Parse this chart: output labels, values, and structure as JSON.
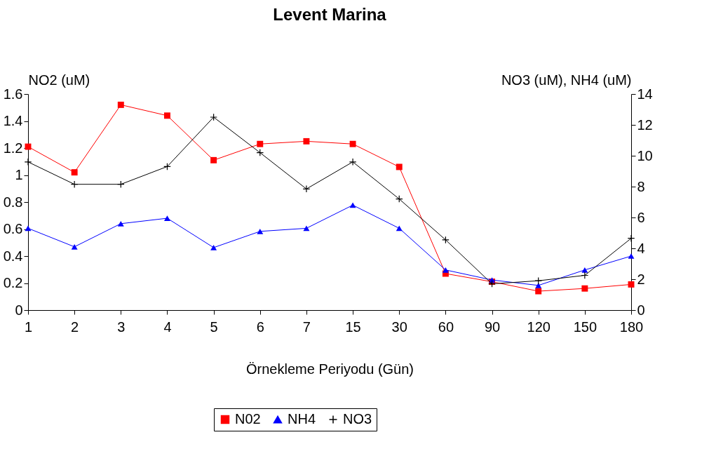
{
  "chart_data": {
    "type": "line",
    "title": "Levent Marina",
    "xlabel": "Örnekleme Periyodu (Gün)",
    "ylabel": "NO2 (uM)",
    "y2label": "NO3 (uM), NH4 (uM)",
    "categories": [
      "1",
      "2",
      "3",
      "4",
      "5",
      "6",
      "7",
      "15",
      "30",
      "60",
      "90",
      "120",
      "150",
      "180"
    ],
    "series": [
      {
        "name": "N02",
        "color": "#ff0000",
        "marker": "square",
        "values": [
          1.21,
          1.02,
          1.52,
          1.44,
          1.11,
          1.23,
          1.25,
          1.23,
          1.06,
          0.27,
          0.21,
          0.14,
          0.16,
          0.19
        ]
      },
      {
        "name": "NH4",
        "color": "#0000ff",
        "marker": "triangle",
        "axis": "y2",
        "values": [
          5.3,
          4.1,
          5.6,
          5.95,
          4.05,
          5.1,
          5.3,
          6.8,
          5.3,
          2.6,
          1.95,
          1.6,
          2.6,
          3.5
        ]
      },
      {
        "name": "NO3",
        "color": "#000000",
        "marker": "cross",
        "axis": "y2",
        "values": [
          9.6,
          8.15,
          8.15,
          9.3,
          12.5,
          10.2,
          7.85,
          9.6,
          7.2,
          4.55,
          1.7,
          1.9,
          2.25,
          4.65
        ]
      }
    ],
    "ylim": [
      0,
      1.6
    ],
    "yticks": [
      0,
      0.2,
      0.4,
      0.6,
      0.8,
      1,
      1.2,
      1.4,
      1.6
    ],
    "y2lim": [
      0,
      14
    ],
    "y2ticks": [
      0,
      2,
      4,
      6,
      8,
      10,
      12,
      14
    ],
    "grid": false,
    "legend": "bottom",
    "line_style": "solid"
  }
}
